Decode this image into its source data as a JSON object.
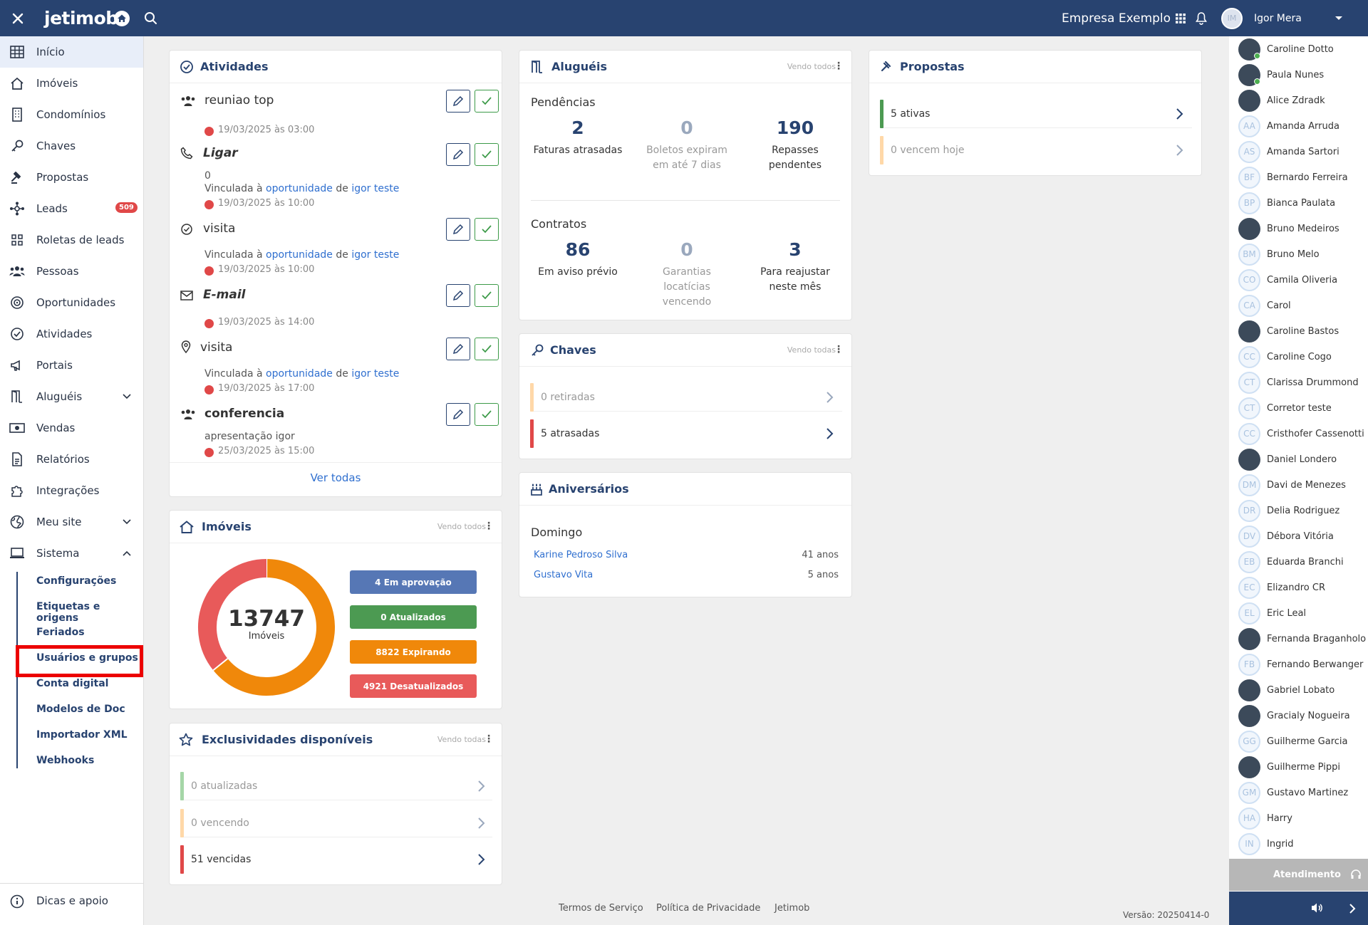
{
  "topbar": {
    "logo": "jetimob",
    "company": "Empresa Exemplo",
    "user_initials": "IM",
    "user_name": "Igor Mera"
  },
  "sidebar": {
    "items": [
      {
        "label": "Início",
        "icon": "grid-icon"
      },
      {
        "label": "Imóveis",
        "icon": "home-icon"
      },
      {
        "label": "Condomínios",
        "icon": "building-icon"
      },
      {
        "label": "Chaves",
        "icon": "key-icon"
      },
      {
        "label": "Propostas",
        "icon": "gavel-icon"
      },
      {
        "label": "Leads",
        "icon": "network-icon",
        "badge": "509"
      },
      {
        "label": "Roletas de leads",
        "icon": "roulette-icon"
      },
      {
        "label": "Pessoas",
        "icon": "people-icon"
      },
      {
        "label": "Oportunidades",
        "icon": "target-icon"
      },
      {
        "label": "Atividades",
        "icon": "check-circle-icon"
      },
      {
        "label": "Portais",
        "icon": "megaphone-icon"
      },
      {
        "label": "Aluguéis",
        "icon": "door-icon"
      },
      {
        "label": "Vendas",
        "icon": "money-icon"
      },
      {
        "label": "Relatórios",
        "icon": "report-icon"
      },
      {
        "label": "Integrações",
        "icon": "puzzle-icon"
      },
      {
        "label": "Meu site",
        "icon": "globe-icon"
      },
      {
        "label": "Sistema",
        "icon": "laptop-icon"
      }
    ],
    "sub_items": [
      "Configurações",
      "Etiquetas e origens",
      "Feriados",
      "Usuários e grupos",
      "Conta digital",
      "Modelos de Doc",
      "Importador XML",
      "Webhooks"
    ],
    "help": "Dicas e apoio"
  },
  "atividades": {
    "title": "Atividades",
    "items": [
      {
        "title": "reuniao top",
        "date": "19/03/2025 às 03:00"
      },
      {
        "title": "Ligar",
        "extra": "0",
        "linked_prefix": "Vinculada à",
        "linked_link": "oportunidade",
        "linked_mid": "de",
        "linked_person": "igor teste",
        "date": "19/03/2025 às 10:00"
      },
      {
        "title": "visita",
        "linked_prefix": "Vinculada à",
        "linked_link": "oportunidade",
        "linked_mid": "de",
        "linked_person": "igor teste",
        "date": "19/03/2025 às 10:00"
      },
      {
        "title": "E-mail",
        "date": "19/03/2025 às 14:00"
      },
      {
        "title": "visita",
        "linked_prefix": "Vinculada à",
        "linked_link": "oportunidade",
        "linked_mid": "de",
        "linked_person": "igor teste",
        "date": "19/03/2025 às 17:00"
      },
      {
        "title": "conferencia",
        "extra": "apresentação igor",
        "date": "25/03/2025 às 15:00"
      }
    ],
    "see_all": "Ver todas"
  },
  "imoveis": {
    "title": "Imóveis",
    "vendo": "Vendo todos",
    "total": "13747",
    "total_label": "Imóveis",
    "pills": [
      "4 Em aprovação",
      "0 Atualizados",
      "8822 Expirando",
      "4921 Desatualizados"
    ],
    "colors": {
      "aprovacao": "#5677b5",
      "atualizados": "#4c9a52",
      "expirando": "#f0880a",
      "desatualizados": "#e85a5a"
    }
  },
  "chart_data": {
    "type": "pie",
    "categories": [
      "Em aprovação",
      "Atualizados",
      "Expirando",
      "Desatualizados"
    ],
    "values": [
      4,
      0,
      8822,
      4921
    ]
  },
  "exclusividades": {
    "title": "Exclusividades disponíveis",
    "vendo": "Vendo todas",
    "rows": [
      "0 atualizadas",
      "0 vencendo",
      "51 vencidas"
    ]
  },
  "alugueis": {
    "title": "Aluguéis",
    "vendo": "Vendo todos",
    "pendencias": "Pendências",
    "p_nums": [
      "2",
      "0",
      "190"
    ],
    "p_labels": [
      "Faturas atrasadas",
      "Boletos expiram em até 7 dias",
      "Repasses pendentes"
    ],
    "contratos": "Contratos",
    "c_nums": [
      "86",
      "0",
      "3"
    ],
    "c_labels": [
      "Em aviso prévio",
      "Garantias locatícias vencendo",
      "Para reajustar neste mês"
    ]
  },
  "chaves": {
    "title": "Chaves",
    "vendo": "Vendo todas",
    "rows": [
      "0 retiradas",
      "5 atrasadas"
    ]
  },
  "aniversarios": {
    "title": "Aniversários",
    "day": "Domingo",
    "people": [
      {
        "name": "Karine Pedroso Silva",
        "age": "41 anos"
      },
      {
        "name": "Gustavo Vita",
        "age": "5 anos"
      }
    ]
  },
  "propostas": {
    "title": "Propostas",
    "rows": [
      "5 ativas",
      "0 vencem hoje"
    ]
  },
  "footer": {
    "terms": "Termos de Serviço",
    "privacy": "Política de Privacidade",
    "brand": "Jetimob",
    "version": "Versão: 20250414-0"
  },
  "people": [
    {
      "name": "Caroline Dotto",
      "ini": "",
      "photo": true,
      "online": true
    },
    {
      "name": "Paula Nunes",
      "ini": "",
      "photo": true,
      "online": true
    },
    {
      "name": "Alice Zdradk",
      "ini": "",
      "photo": true
    },
    {
      "name": "Amanda Arruda",
      "ini": "AA"
    },
    {
      "name": "Amanda Sartori",
      "ini": "AS"
    },
    {
      "name": "Bernardo Ferreira",
      "ini": "BF"
    },
    {
      "name": "Bianca Paulata",
      "ini": "BP"
    },
    {
      "name": "Bruno Medeiros",
      "ini": "",
      "photo": true
    },
    {
      "name": "Bruno Melo",
      "ini": "BM"
    },
    {
      "name": "Camila Oliveria",
      "ini": "CO"
    },
    {
      "name": "Carol",
      "ini": "CA"
    },
    {
      "name": "Caroline Bastos",
      "ini": "",
      "photo": true
    },
    {
      "name": "Caroline Cogo",
      "ini": "CC"
    },
    {
      "name": "Clarissa Drummond",
      "ini": "CT"
    },
    {
      "name": "Corretor teste",
      "ini": "CT"
    },
    {
      "name": "Cristhofer Cassenotti",
      "ini": "CC"
    },
    {
      "name": "Daniel Londero",
      "ini": "",
      "photo": true
    },
    {
      "name": "Davi de Menezes",
      "ini": "DM"
    },
    {
      "name": "Delia Rodriguez",
      "ini": "DR"
    },
    {
      "name": "Débora Vitória",
      "ini": "DV"
    },
    {
      "name": "Eduarda Branchi",
      "ini": "EB"
    },
    {
      "name": "Elizandro CR",
      "ini": "EC"
    },
    {
      "name": "Eric Leal",
      "ini": "EL"
    },
    {
      "name": "Fernanda Braganholo",
      "ini": "",
      "photo": true
    },
    {
      "name": "Fernando Berwanger",
      "ini": "FB"
    },
    {
      "name": "Gabriel Lobato",
      "ini": "",
      "photo": true
    },
    {
      "name": "Gracialy Nogueira",
      "ini": "",
      "photo": true
    },
    {
      "name": "Guilherme Garcia",
      "ini": "GG"
    },
    {
      "name": "Guilherme Pippi",
      "ini": "",
      "photo": true
    },
    {
      "name": "Gustavo Martinez",
      "ini": "GM"
    },
    {
      "name": "Harry",
      "ini": "HA"
    },
    {
      "name": "Ingrid",
      "ini": "IN"
    }
  ],
  "atendimento": "Atendimento"
}
